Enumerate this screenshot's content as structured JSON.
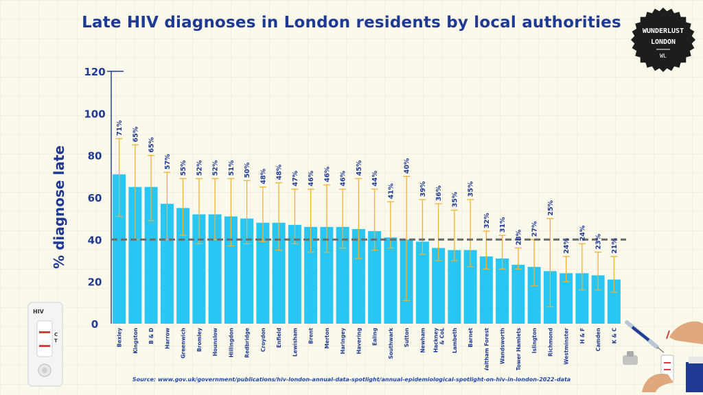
{
  "title": "Late HIV diagnoses in London residents by local authorities",
  "source": "Source: www.gov.uk/government/publications/hiv-london-annual-data-spotlight/annual-epidemiological-spotlight-on-hiv-in-london-2022-data",
  "logo": {
    "line1": "WUNDERLUST",
    "line2": "LONDON",
    "line3": "WL"
  },
  "kit": {
    "label": "HIV",
    "c": "C",
    "t": "T"
  },
  "colors": {
    "bar": "#29c6f3",
    "error": "#f2b233",
    "reference": "#6e6e6e",
    "axis": "#1f3a93",
    "title": "#1f3a93"
  },
  "chart_data": {
    "type": "bar",
    "title": "Late HIV diagnoses in London residents by local authorities",
    "xlabel": "",
    "ylabel": "% diagnose late",
    "ylim": [
      0,
      120
    ],
    "yticks": [
      0,
      20,
      40,
      60,
      80,
      100,
      120
    ],
    "reference_line": 40,
    "categories": [
      "Bexley",
      "Kingston",
      "B & D",
      "Harrow",
      "Greenwich",
      "Bromley",
      "Hounslow",
      "Hillingdon",
      "Redbridge",
      "Croydon",
      "Enfield",
      "Lewisham",
      "Brent",
      "Merton",
      "Haringey",
      "Havering",
      "Ealing",
      "Southwark",
      "Sutton",
      "Newham",
      "Hackney & CoL",
      "Lambeth",
      "Barnet",
      "Waltham Forest",
      "Wandsworth",
      "Tower Hamlets",
      "Islington",
      "Richmond",
      "Westminster",
      "H & F",
      "Camden",
      "K & C"
    ],
    "values": [
      71,
      65,
      65,
      57,
      55,
      52,
      52,
      51,
      50,
      48,
      48,
      47,
      46,
      46,
      46,
      45,
      44,
      41,
      40,
      39,
      36,
      35,
      35,
      32,
      31,
      28,
      27,
      25,
      24,
      24,
      23,
      21
    ],
    "labels": [
      "71%",
      "65%",
      "65%",
      "57%",
      "55%",
      "52%",
      "52%",
      "51%",
      "50%",
      "48%",
      "48%",
      "47%",
      "46%",
      "46%",
      "46%",
      "45%",
      "44%",
      "41%",
      "40%",
      "39%",
      "36%",
      "35%",
      "35%",
      "32%",
      "31%",
      "28%",
      "27%",
      "25%",
      "24%",
      "24%",
      "23%",
      "21%"
    ],
    "error_low": [
      51,
      40,
      49,
      40,
      42,
      38,
      40,
      37,
      38,
      39,
      35,
      38,
      34,
      34,
      36,
      31,
      35,
      36,
      11,
      33,
      30,
      30,
      27,
      26,
      26,
      26,
      18,
      8,
      20,
      16,
      16,
      15
    ],
    "error_high": [
      88,
      85,
      80,
      72,
      69,
      69,
      69,
      69,
      68,
      65,
      67,
      64,
      64,
      66,
      64,
      69,
      64,
      58,
      70,
      59,
      57,
      54,
      59,
      44,
      42,
      36,
      40,
      50,
      32,
      38,
      34,
      32
    ]
  }
}
